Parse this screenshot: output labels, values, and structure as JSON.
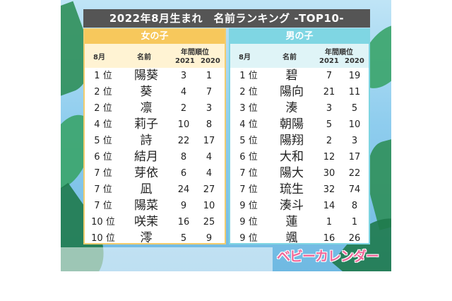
{
  "title": "2022年8月生まれ　名前ランキング -TOP10-",
  "girls": {
    "header": "女の子",
    "col_month": "8月",
    "col_name": "名前",
    "col_rank_group": "年間順位",
    "col_y1": "2021",
    "col_y2": "2020",
    "rows": [
      {
        "rank": "1 位",
        "name": "陽葵",
        "y2021": "3",
        "y2020": "1"
      },
      {
        "rank": "2 位",
        "name": "葵",
        "y2021": "4",
        "y2020": "7"
      },
      {
        "rank": "2 位",
        "name": "凛",
        "y2021": "2",
        "y2020": "3"
      },
      {
        "rank": "4 位",
        "name": "莉子",
        "y2021": "10",
        "y2020": "8"
      },
      {
        "rank": "5 位",
        "name": "詩",
        "y2021": "22",
        "y2020": "17"
      },
      {
        "rank": "6 位",
        "name": "結月",
        "y2021": "8",
        "y2020": "4"
      },
      {
        "rank": "7 位",
        "name": "芽依",
        "y2021": "6",
        "y2020": "4"
      },
      {
        "rank": "7 位",
        "name": "凪",
        "y2021": "24",
        "y2020": "27"
      },
      {
        "rank": "7 位",
        "name": "陽菜",
        "y2021": "9",
        "y2020": "10"
      },
      {
        "rank": "10 位",
        "name": "咲茉",
        "y2021": "16",
        "y2020": "25"
      },
      {
        "rank": "10 位",
        "name": "澪",
        "y2021": "5",
        "y2020": "9"
      }
    ]
  },
  "boys": {
    "header": "男の子",
    "col_month": "8月",
    "col_name": "名前",
    "col_rank_group": "年間順位",
    "col_y1": "2021",
    "col_y2": "2020",
    "rows": [
      {
        "rank": "1 位",
        "name": "碧",
        "y2021": "7",
        "y2020": "19"
      },
      {
        "rank": "2 位",
        "name": "陽向",
        "y2021": "21",
        "y2020": "11"
      },
      {
        "rank": "3 位",
        "name": "湊",
        "y2021": "3",
        "y2020": "5"
      },
      {
        "rank": "4 位",
        "name": "朝陽",
        "y2021": "5",
        "y2020": "10"
      },
      {
        "rank": "5 位",
        "name": "陽翔",
        "y2021": "2",
        "y2020": "3"
      },
      {
        "rank": "6 位",
        "name": "大和",
        "y2021": "12",
        "y2020": "17"
      },
      {
        "rank": "7 位",
        "name": "陽大",
        "y2021": "30",
        "y2020": "22"
      },
      {
        "rank": "7 位",
        "name": "琉生",
        "y2021": "32",
        "y2020": "74"
      },
      {
        "rank": "9 位",
        "name": "湊斗",
        "y2021": "14",
        "y2020": "8"
      },
      {
        "rank": "9 位",
        "name": "蓮",
        "y2021": "1",
        "y2020": "1"
      },
      {
        "rank": "9 位",
        "name": "颯",
        "y2021": "16",
        "y2020": "26"
      }
    ]
  },
  "logo": "ベビーカレンダー",
  "colors": {
    "girls_accent": "#f7c85c",
    "boys_accent": "#7fd6e3",
    "logo": "#f06a9a"
  }
}
